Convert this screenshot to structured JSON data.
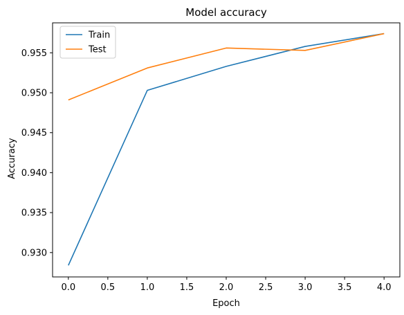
{
  "chart_data": {
    "type": "line",
    "title": "Model accuracy",
    "xlabel": "Epoch",
    "ylabel": "Accuracy",
    "x": [
      0,
      1,
      2,
      3,
      4
    ],
    "series": [
      {
        "name": "Train",
        "color": "#1f77b4",
        "values": [
          0.9284,
          0.9503,
          0.9533,
          0.9558,
          0.9574
        ]
      },
      {
        "name": "Test",
        "color": "#ff7f0e",
        "values": [
          0.9491,
          0.9531,
          0.9556,
          0.9553,
          0.9574
        ]
      }
    ],
    "xlim": [
      -0.2,
      4.2
    ],
    "ylim": [
      0.92695,
      0.95875
    ],
    "xticks": [
      0.0,
      0.5,
      1.0,
      1.5,
      2.0,
      2.5,
      3.0,
      3.5,
      4.0
    ],
    "xtick_labels": [
      "0.0",
      "0.5",
      "1.0",
      "1.5",
      "2.0",
      "2.5",
      "3.0",
      "3.5",
      "4.0"
    ],
    "yticks": [
      0.93,
      0.935,
      0.94,
      0.945,
      0.95,
      0.955
    ],
    "ytick_labels": [
      "0.930",
      "0.935",
      "0.940",
      "0.945",
      "0.950",
      "0.955"
    ],
    "grid": false,
    "legend_position": "top-left"
  }
}
